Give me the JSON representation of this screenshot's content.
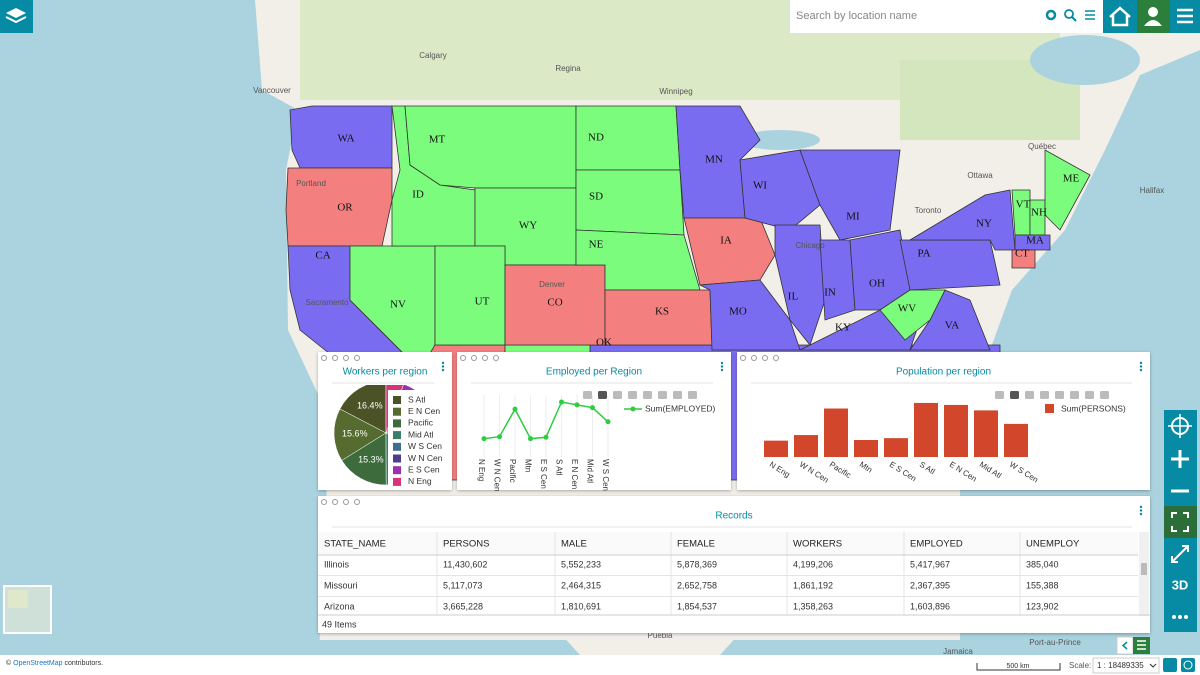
{
  "top_bar": {
    "search_placeholder": "Search by location name"
  },
  "map": {
    "state_labels": [
      "WA",
      "OR",
      "CA",
      "NV",
      "ID",
      "MT",
      "WY",
      "UT",
      "CO",
      "ND",
      "SD",
      "NE",
      "KS",
      "OK",
      "MN",
      "IA",
      "MO",
      "WI",
      "IL",
      "MI",
      "IN",
      "OH",
      "KY",
      "WV",
      "VA",
      "PA",
      "NY",
      "VT",
      "NH",
      "ME",
      "MA",
      "CT"
    ],
    "place_labels": [
      "Calgary",
      "Regina",
      "Winnipeg",
      "Vancouver",
      "Portland",
      "Sacramento",
      "Denver",
      "Chicago",
      "Toronto",
      "Ottawa",
      "Québec",
      "Halifax",
      "Puebla",
      "Jamaica",
      "Port-au-Prince"
    ],
    "attribution": {
      "symbol": "©",
      "link": "OpenStreetMap",
      "text": "contributors."
    },
    "scale_bar": "500 km",
    "scale_label": "Scale:",
    "scale_value": "1 : 18489335",
    "button_3d": "3D"
  },
  "widgets": [
    {
      "chart_data": {
        "type": "pie",
        "title": "Workers per region",
        "categories": [
          "S Atl",
          "E N Cen",
          "Pacific",
          "Mid Atl",
          "W S Cen",
          "W N Cen",
          "E S Cen",
          "N Eng"
        ],
        "values": [
          16.4,
          15.6,
          15.3,
          15.0,
          12.5,
          8.0,
          6.5,
          5.2
        ],
        "value_labels": [
          "16.4%",
          "15.6%",
          "15.3%",
          null,
          null,
          null,
          null,
          null
        ],
        "colors": [
          "#4b5326",
          "#556b2f",
          "#3d6b3b",
          "#3a7d6a",
          "#3b6e8f",
          "#4b3d8f",
          "#9b30b0",
          "#d6337a"
        ]
      }
    },
    {
      "chart_data": {
        "type": "line",
        "title": "Employed per Region",
        "categories": [
          "N Eng",
          "W N Cen",
          "Pacific",
          "Mtn",
          "E S Cen",
          "S Atl",
          "E N Cen",
          "Mid Atl",
          "W S Cen"
        ],
        "series": [
          {
            "name": "Sum(EMPLOYED)",
            "color": "#2ecc40",
            "values": [
              6.5,
              7.2,
              17.0,
              6.5,
              7.0,
              19.5,
              18.5,
              17.5,
              12.5
            ]
          }
        ],
        "ylim": [
          0,
          22
        ],
        "grid": true
      }
    },
    {
      "chart_data": {
        "type": "bar",
        "title": "Population per region",
        "categories": [
          "N Eng",
          "W N Cen",
          "Pacific",
          "Mtn",
          "E S Cen",
          "S Atl",
          "E N Cen",
          "Mid Atl",
          "W S Cen"
        ],
        "series": [
          {
            "name": "Sum(PERSONS)",
            "color": "#d2472b",
            "values": [
              13.2,
              17.7,
              39.1,
              13.7,
              15.2,
              43.6,
              42.0,
              37.6,
              26.7
            ]
          }
        ],
        "ylim": [
          0,
          50
        ],
        "grid": false
      }
    }
  ],
  "records": {
    "title": "Records",
    "columns": [
      "STATE_NAME",
      "PERSONS",
      "MALE",
      "FEMALE",
      "WORKERS",
      "EMPLOYED",
      "UNEMPLOY"
    ],
    "rows": [
      [
        "Illinois",
        "11,430,602",
        "5,552,233",
        "5,878,369",
        "4,199,206",
        "5,417,967",
        "385,040"
      ],
      [
        "Missouri",
        "5,117,073",
        "2,464,315",
        "2,652,758",
        "1,861,192",
        "2,367,395",
        "155,388"
      ],
      [
        "Arizona",
        "3,665,228",
        "1,810,691",
        "1,854,537",
        "1,358,263",
        "1,603,896",
        "123,902"
      ]
    ],
    "footer": "49 Items"
  }
}
